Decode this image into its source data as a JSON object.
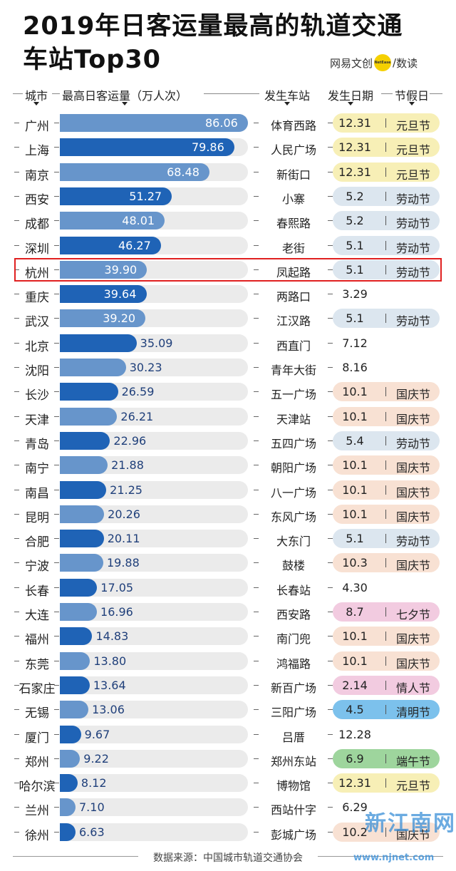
{
  "title_line1": "2019年日客运量最高的轨道交通",
  "title_line2": "车站Top30",
  "brand": {
    "left": "网易文创",
    "dot": "NetEase",
    "right": "数读"
  },
  "headers": {
    "city": "城市",
    "metric": "最高日客运量（万人次）",
    "station": "发生车站",
    "date": "发生日期",
    "holiday": "节假日"
  },
  "footer": "数据来源：中国城市轨道交通协会",
  "watermark": "新江南网",
  "watermark_url": "www.njnet.com",
  "colors": {
    "bar_dark": "#1f63b6",
    "bar_light": "#6795cb",
    "track": "#ebebeb",
    "yuandan": "#f7efb6",
    "laodong": "#dce6ef",
    "guoqing": "#f8e1d3",
    "qixi": "#f2cbe0",
    "qingren": "#f2cbe0",
    "qingming": "#7cc1ec",
    "duanwu": "#9ed59d",
    "highlight": "#e02020"
  },
  "chart_data": {
    "type": "bar",
    "title": "2019年日客运量最高的轨道交通车站Top30",
    "xlabel": "最高日客运量（万人次）",
    "xlim": [
      0,
      86.06
    ],
    "highlighted": "杭州",
    "rows": [
      {
        "city": "广州",
        "value": 86.06,
        "value_label": "86.06",
        "station": "体育西路",
        "date": "12.31",
        "holiday": "元旦节",
        "htype": "yuandan"
      },
      {
        "city": "上海",
        "value": 79.86,
        "value_label": "79.86",
        "station": "人民广场",
        "date": "12.31",
        "holiday": "元旦节",
        "htype": "yuandan"
      },
      {
        "city": "南京",
        "value": 68.48,
        "value_label": "68.48",
        "station": "新街口",
        "date": "12.31",
        "holiday": "元旦节",
        "htype": "yuandan"
      },
      {
        "city": "西安",
        "value": 51.27,
        "value_label": "51.27",
        "station": "小寨",
        "date": "5.2",
        "holiday": "劳动节",
        "htype": "laodong"
      },
      {
        "city": "成都",
        "value": 48.01,
        "value_label": "48.01",
        "station": "春熙路",
        "date": "5.2",
        "holiday": "劳动节",
        "htype": "laodong"
      },
      {
        "city": "深圳",
        "value": 46.27,
        "value_label": "46.27",
        "station": "老街",
        "date": "5.1",
        "holiday": "劳动节",
        "htype": "laodong"
      },
      {
        "city": "杭州",
        "value": 39.9,
        "value_label": "39.90",
        "station": "凤起路",
        "date": "5.1",
        "holiday": "劳动节",
        "htype": "laodong"
      },
      {
        "city": "重庆",
        "value": 39.64,
        "value_label": "39.64",
        "station": "两路口",
        "date": "3.29",
        "holiday": "",
        "htype": ""
      },
      {
        "city": "武汉",
        "value": 39.2,
        "value_label": "39.20",
        "station": "江汉路",
        "date": "5.1",
        "holiday": "劳动节",
        "htype": "laodong"
      },
      {
        "city": "北京",
        "value": 35.09,
        "value_label": "35.09",
        "station": "西直门",
        "date": "7.12",
        "holiday": "",
        "htype": ""
      },
      {
        "city": "沈阳",
        "value": 30.23,
        "value_label": "30.23",
        "station": "青年大街",
        "date": "8.16",
        "holiday": "",
        "htype": ""
      },
      {
        "city": "长沙",
        "value": 26.59,
        "value_label": "26.59",
        "station": "五一广场",
        "date": "10.1",
        "holiday": "国庆节",
        "htype": "guoqing"
      },
      {
        "city": "天津",
        "value": 26.21,
        "value_label": "26.21",
        "station": "天津站",
        "date": "10.1",
        "holiday": "国庆节",
        "htype": "guoqing"
      },
      {
        "city": "青岛",
        "value": 22.96,
        "value_label": "22.96",
        "station": "五四广场",
        "date": "5.4",
        "holiday": "劳动节",
        "htype": "laodong"
      },
      {
        "city": "南宁",
        "value": 21.88,
        "value_label": "21.88",
        "station": "朝阳广场",
        "date": "10.1",
        "holiday": "国庆节",
        "htype": "guoqing"
      },
      {
        "city": "南昌",
        "value": 21.25,
        "value_label": "21.25",
        "station": "八一广场",
        "date": "10.1",
        "holiday": "国庆节",
        "htype": "guoqing"
      },
      {
        "city": "昆明",
        "value": 20.26,
        "value_label": "20.26",
        "station": "东风广场",
        "date": "10.1",
        "holiday": "国庆节",
        "htype": "guoqing"
      },
      {
        "city": "合肥",
        "value": 20.11,
        "value_label": "20.11",
        "station": "大东门",
        "date": "5.1",
        "holiday": "劳动节",
        "htype": "laodong"
      },
      {
        "city": "宁波",
        "value": 19.88,
        "value_label": "19.88",
        "station": "鼓楼",
        "date": "10.3",
        "holiday": "国庆节",
        "htype": "guoqing"
      },
      {
        "city": "长春",
        "value": 17.05,
        "value_label": "17.05",
        "station": "长春站",
        "date": "4.30",
        "holiday": "",
        "htype": ""
      },
      {
        "city": "大连",
        "value": 16.96,
        "value_label": "16.96",
        "station": "西安路",
        "date": "8.7",
        "holiday": "七夕节",
        "htype": "qixi"
      },
      {
        "city": "福州",
        "value": 14.83,
        "value_label": "14.83",
        "station": "南门兜",
        "date": "10.1",
        "holiday": "国庆节",
        "htype": "guoqing"
      },
      {
        "city": "东莞",
        "value": 13.8,
        "value_label": "13.80",
        "station": "鸿福路",
        "date": "10.1",
        "holiday": "国庆节",
        "htype": "guoqing"
      },
      {
        "city": "石家庄",
        "value": 13.64,
        "value_label": "13.64",
        "station": "新百广场",
        "date": "2.14",
        "holiday": "情人节",
        "htype": "qingren"
      },
      {
        "city": "无锡",
        "value": 13.06,
        "value_label": "13.06",
        "station": "三阳广场",
        "date": "4.5",
        "holiday": "清明节",
        "htype": "qingming"
      },
      {
        "city": "厦门",
        "value": 9.67,
        "value_label": "9.67",
        "station": "吕厝",
        "date": "12.28",
        "holiday": "",
        "htype": ""
      },
      {
        "city": "郑州",
        "value": 9.22,
        "value_label": "9.22",
        "station": "郑州东站",
        "date": "6.9",
        "holiday": "端午节",
        "htype": "duanwu"
      },
      {
        "city": "哈尔滨",
        "value": 8.12,
        "value_label": "8.12",
        "station": "博物馆",
        "date": "12.31",
        "holiday": "元旦节",
        "htype": "yuandan"
      },
      {
        "city": "兰州",
        "value": 7.1,
        "value_label": "7.10",
        "station": "西站什字",
        "date": "6.29",
        "holiday": "",
        "htype": ""
      },
      {
        "city": "徐州",
        "value": 6.63,
        "value_label": "6.63",
        "station": "彭城广场",
        "date": "10.2",
        "holiday": "国庆节",
        "htype": "guoqing"
      }
    ]
  }
}
